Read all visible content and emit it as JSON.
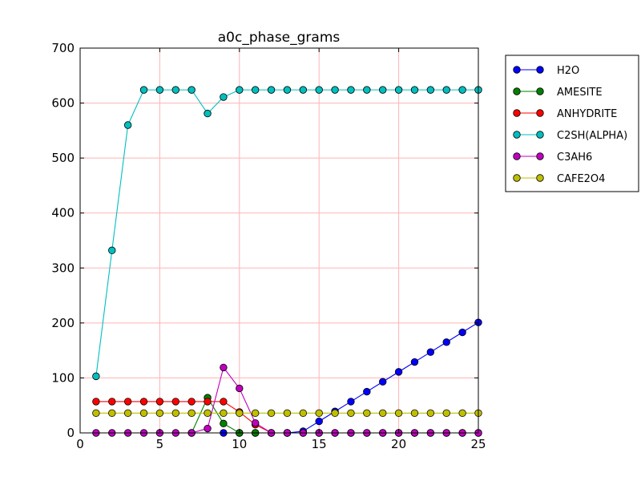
{
  "chart_data": {
    "type": "line",
    "title": "a0c_phase_grams",
    "xlabel": "",
    "ylabel": "",
    "xlim": [
      0,
      25
    ],
    "ylim": [
      0,
      700
    ],
    "xticks": [
      0,
      5,
      10,
      15,
      20,
      25
    ],
    "yticks": [
      0,
      100,
      200,
      300,
      400,
      500,
      600,
      700
    ],
    "grid": true,
    "grid_color": "#ffb3b3",
    "legend_position": "outside-right-top",
    "x": [
      1,
      2,
      3,
      4,
      5,
      6,
      7,
      8,
      9,
      10,
      11,
      12,
      13,
      14,
      15,
      16,
      17,
      18,
      19,
      20,
      21,
      22,
      23,
      24,
      25
    ],
    "series": [
      {
        "name": "H2O",
        "color": "#0000ff",
        "values": [
          null,
          null,
          null,
          null,
          null,
          null,
          null,
          null,
          0,
          0,
          0,
          0,
          0,
          3,
          21,
          39,
          57,
          75,
          93,
          111,
          129,
          147,
          165,
          183,
          201
        ]
      },
      {
        "name": "AMESITE",
        "color": "#008000",
        "values": [
          null,
          null,
          null,
          null,
          null,
          null,
          0,
          64,
          17,
          0,
          0,
          null,
          null,
          null,
          null,
          null,
          null,
          null,
          null,
          null,
          null,
          null,
          null,
          null,
          null
        ]
      },
      {
        "name": "ANHYDRITE",
        "color": "#ff0000",
        "values": [
          57,
          57,
          57,
          57,
          57,
          57,
          57,
          57,
          57,
          38,
          15,
          0,
          0,
          0,
          0,
          0,
          0,
          0,
          0,
          0,
          0,
          0,
          0,
          0,
          0
        ]
      },
      {
        "name": "C2SH(ALPHA)",
        "color": "#00bfbf",
        "values": [
          103,
          332,
          560,
          624,
          624,
          624,
          624,
          581,
          611,
          624,
          624,
          624,
          624,
          624,
          624,
          624,
          624,
          624,
          624,
          624,
          624,
          624,
          624,
          624,
          624
        ]
      },
      {
        "name": "C3AH6",
        "color": "#bf00bf",
        "values": [
          0,
          0,
          0,
          0,
          0,
          0,
          0,
          8,
          119,
          81,
          18,
          0,
          0,
          0,
          0,
          0,
          0,
          0,
          0,
          0,
          0,
          0,
          0,
          0,
          0
        ]
      },
      {
        "name": "CAFE2O4",
        "color": "#bfbf00",
        "values": [
          36,
          36,
          36,
          36,
          36,
          36,
          36,
          36,
          36,
          36,
          36,
          36,
          36,
          36,
          36,
          36,
          36,
          36,
          36,
          36,
          36,
          36,
          36,
          36,
          36
        ]
      }
    ]
  }
}
